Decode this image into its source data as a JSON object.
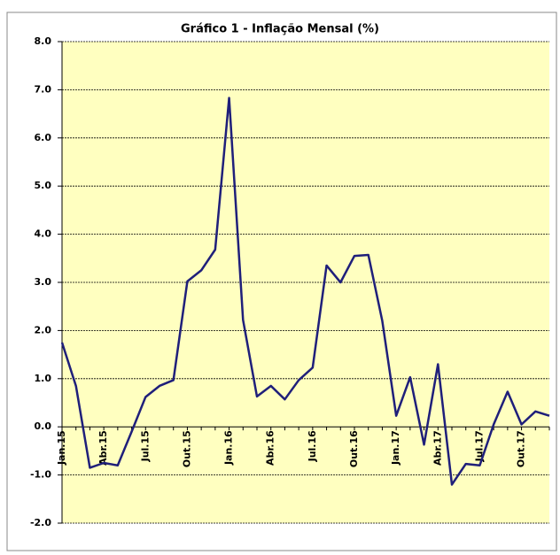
{
  "chart_data": {
    "type": "line",
    "title": "Gráfico 1 - Inflação Mensal (%)",
    "categories": [
      "Jan.15",
      null,
      null,
      "Abr.15",
      null,
      null,
      "Jul.15",
      null,
      null,
      "Out.15",
      null,
      null,
      "Jan.16",
      null,
      null,
      "Abr.16",
      null,
      null,
      "Jul.16",
      null,
      null,
      "Out.16",
      null,
      null,
      "Jan.17",
      null,
      null,
      "Abr.17",
      null,
      null,
      "Jul.17",
      null,
      null,
      "Out.17",
      null,
      null
    ],
    "values": [
      1.75,
      0.85,
      -0.85,
      -0.75,
      -0.8,
      -0.1,
      0.62,
      0.85,
      0.97,
      3.02,
      3.25,
      3.68,
      6.83,
      2.22,
      0.63,
      0.85,
      0.57,
      0.97,
      1.23,
      3.35,
      3.0,
      3.55,
      3.57,
      2.2,
      0.23,
      1.03,
      -0.37,
      1.3,
      -1.2,
      -0.77,
      -0.8,
      0.05,
      0.73,
      0.05,
      0.32,
      0.23
    ],
    "color": "#1f1f7a",
    "ylim": [
      -2,
      8
    ],
    "yticks": [
      {
        "value": -2,
        "label": "-2.0"
      },
      {
        "value": -1,
        "label": "-1.0"
      },
      {
        "value": 0,
        "label": "0.0"
      },
      {
        "value": 1,
        "label": "1.0"
      },
      {
        "value": 2,
        "label": "2.0"
      },
      {
        "value": 3,
        "label": "3.0"
      },
      {
        "value": 4,
        "label": "4.0"
      },
      {
        "value": 5,
        "label": "5.0"
      },
      {
        "value": 6,
        "label": "6.0"
      },
      {
        "value": 7,
        "label": "7.0"
      },
      {
        "value": 8,
        "label": "8.0"
      }
    ],
    "grid": true,
    "plot_background": "#ffffc0"
  }
}
